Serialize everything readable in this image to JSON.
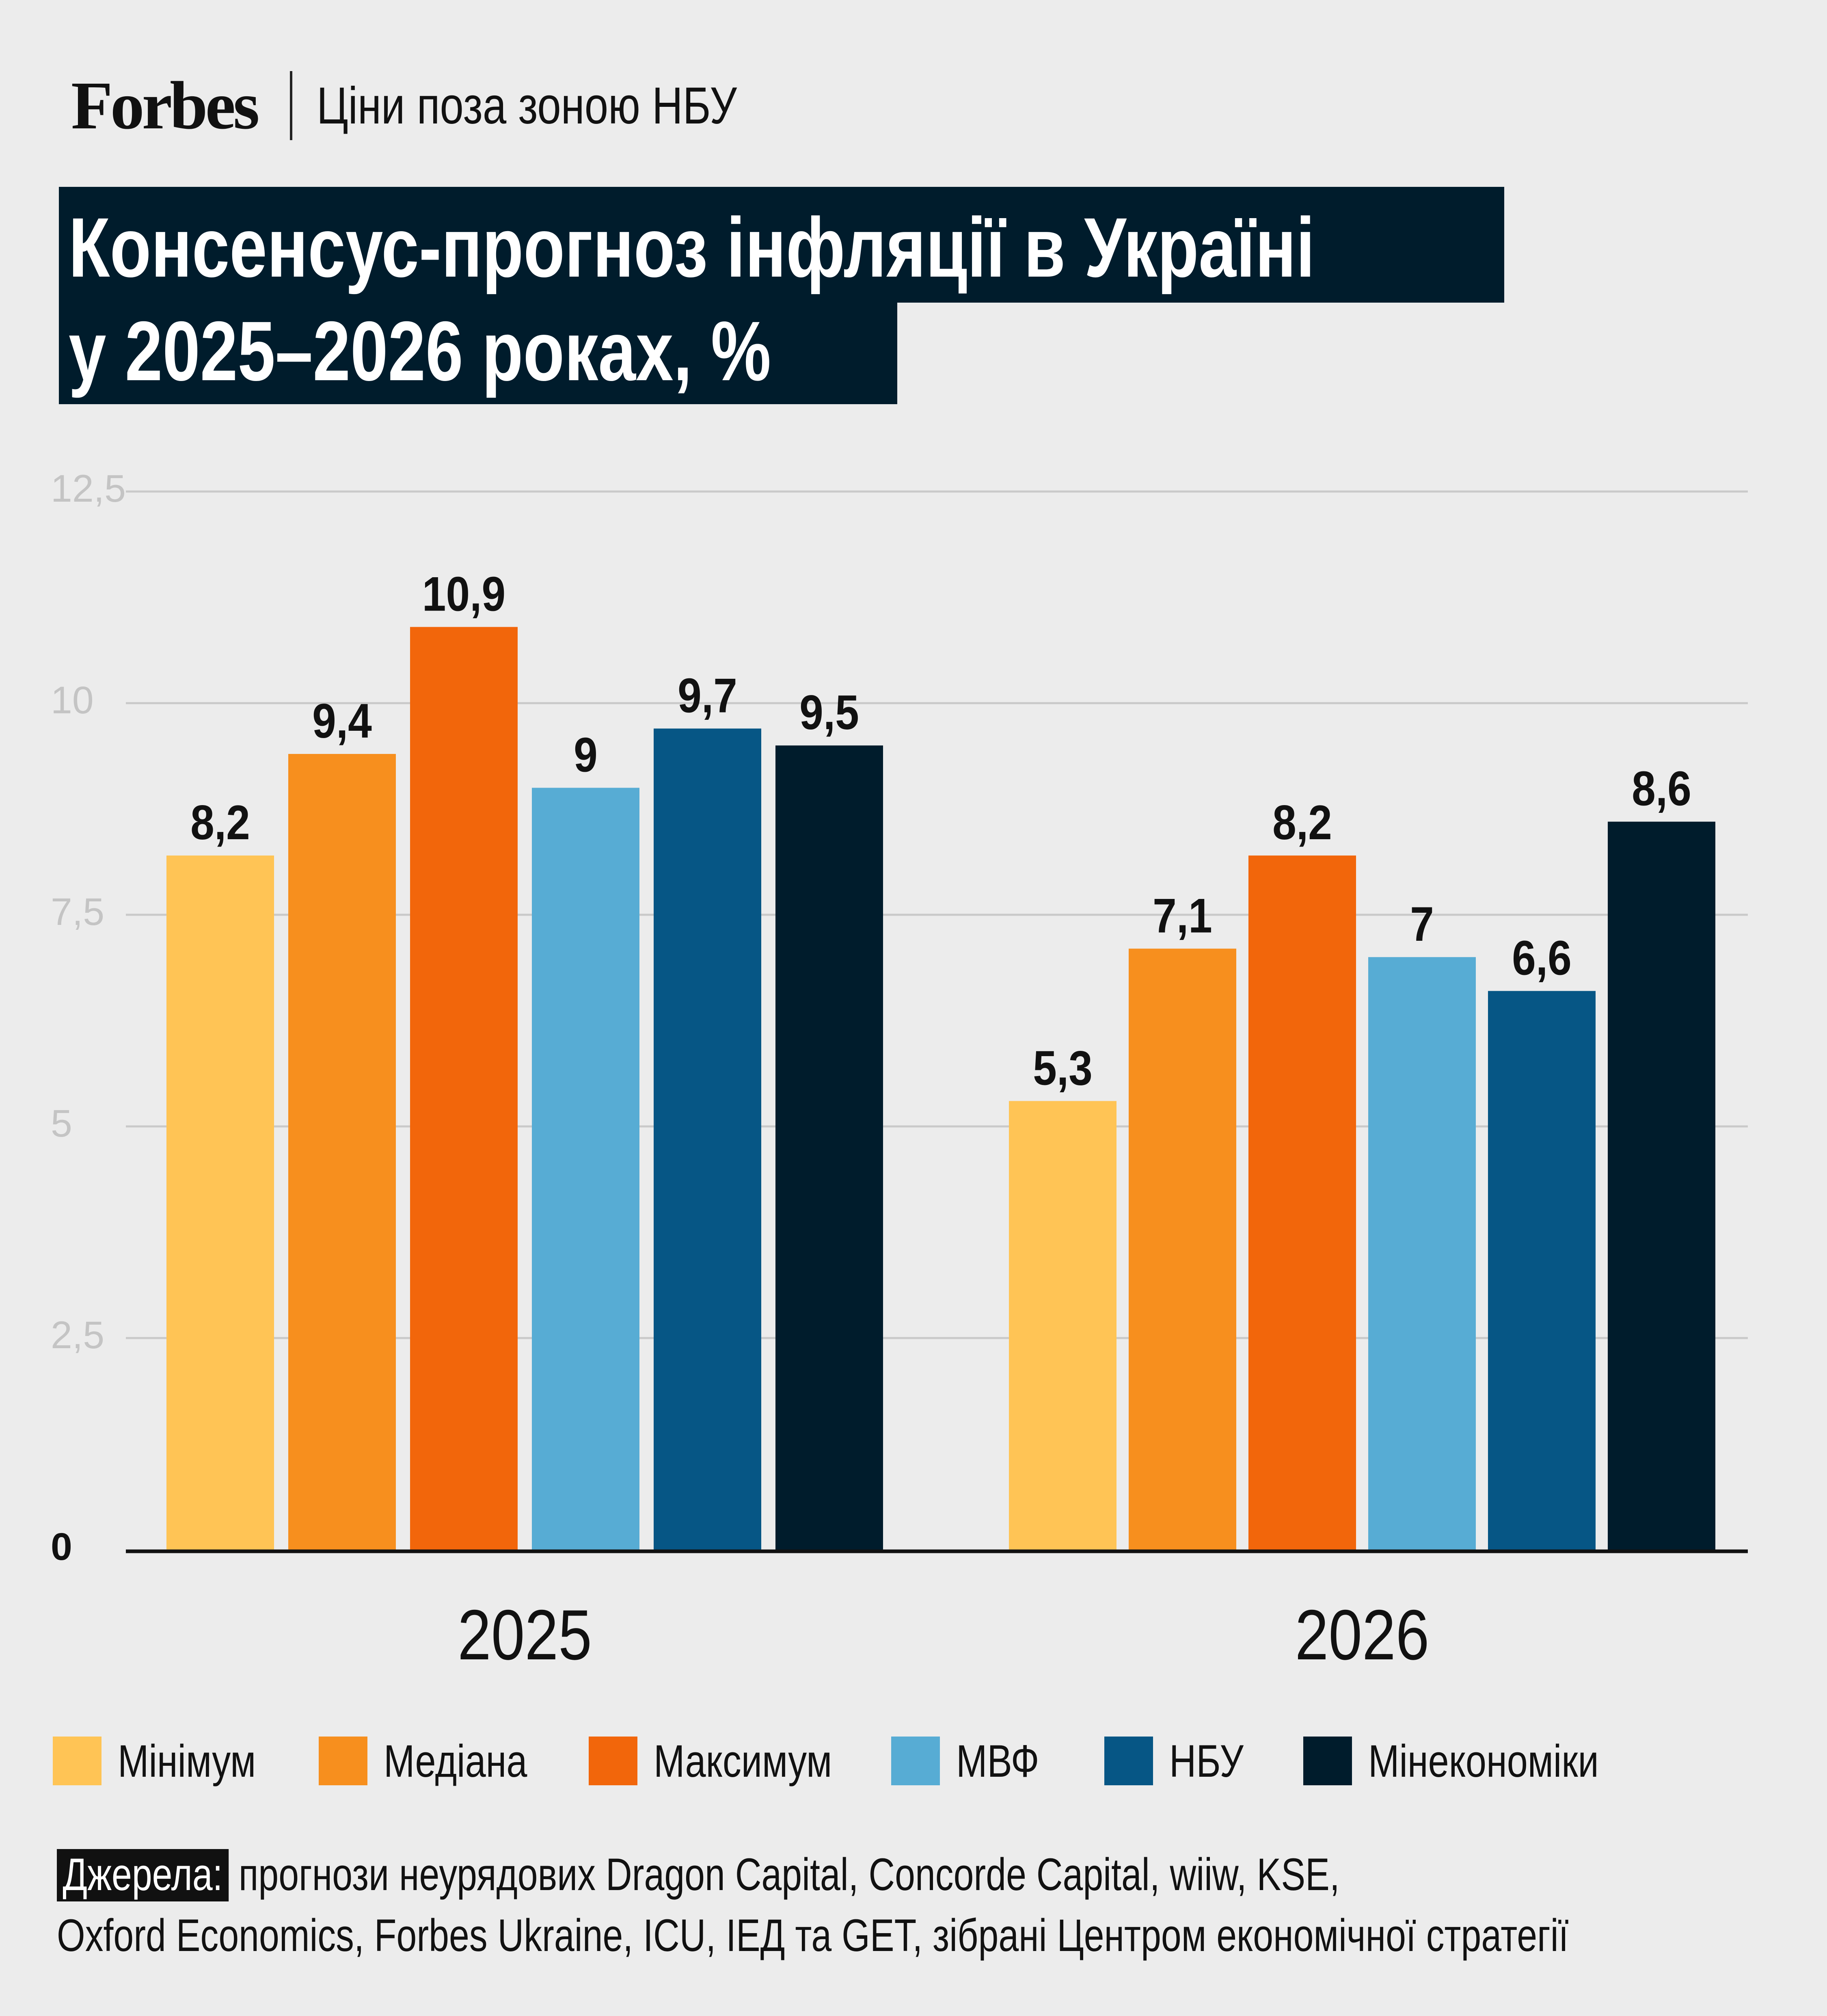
{
  "header": {
    "brand": "Forbes",
    "section": "Ціни поза зоною НБУ"
  },
  "title": {
    "line1": "Консенсус-прогноз інфляції в Україні",
    "line2": "у 2025–2026 роках, %"
  },
  "chart_data": {
    "type": "bar",
    "title": "Консенсус-прогноз інфляції в Україні у 2025–2026 роках, %",
    "categories": [
      "2025",
      "2026"
    ],
    "series": [
      {
        "name": "Мінімум",
        "values": [
          8.2,
          5.3
        ],
        "labels": [
          "8,2",
          "5,3"
        ],
        "color": "#ffc455"
      },
      {
        "name": "Медіана",
        "values": [
          9.4,
          7.1
        ],
        "labels": [
          "9,4",
          "7,1"
        ],
        "color": "#f78f1e"
      },
      {
        "name": "Максимум",
        "values": [
          10.9,
          8.2
        ],
        "labels": [
          "10,9",
          "8,2"
        ],
        "color": "#f2660b"
      },
      {
        "name": "МВФ",
        "values": [
          9,
          7
        ],
        "labels": [
          "9",
          "7"
        ],
        "color": "#57acd4"
      },
      {
        "name": "НБУ",
        "values": [
          9.7,
          6.6
        ],
        "labels": [
          "9,7",
          "6,6"
        ],
        "color": "#065685"
      },
      {
        "name": "Мінекономіки",
        "values": [
          9.5,
          8.6
        ],
        "labels": [
          "9,5",
          "8,6"
        ],
        "color": "#001c2c"
      }
    ],
    "ylim": [
      0,
      12.5
    ],
    "yticks": [
      0,
      2.5,
      5,
      7.5,
      10,
      12.5
    ],
    "ytick_labels": [
      "0",
      "2,5",
      "5",
      "7,5",
      "10",
      "12,5"
    ],
    "grid": true,
    "legend": "bottom"
  },
  "source": {
    "label": "Джерела:",
    "line1": "прогнози неурядових Dragon Capital, Concorde Capital, wiiw, KSE,",
    "line2": "Oxford Economics, Forbes Ukraine, ICU, ІЕД та GET, зібрані Центром економічної стратегії"
  }
}
